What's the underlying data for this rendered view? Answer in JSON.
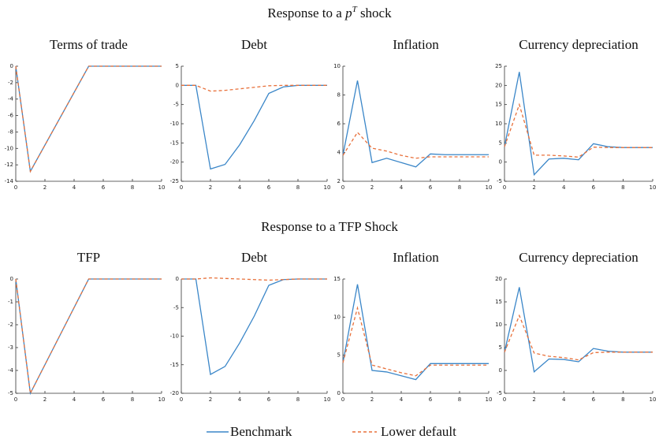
{
  "sections": [
    {
      "title": {
        "text": "Response to a ",
        "symbol": "p",
        "sup": "T",
        "rest": " shock"
      }
    },
    {
      "title": {
        "text": "Response to a TFP Shock"
      }
    }
  ],
  "chart_data": [
    {
      "type": "line",
      "title": "Terms of trade",
      "x": [
        0,
        1,
        2,
        3,
        4,
        5,
        6,
        7,
        8,
        9,
        10
      ],
      "xlim": [
        0,
        10
      ],
      "xticks": [
        0,
        2,
        4,
        6,
        8,
        10
      ],
      "ylim": [
        -14,
        0
      ],
      "yticks": [
        -14,
        -12,
        -10,
        -8,
        -6,
        -4,
        -2,
        0
      ],
      "series": [
        {
          "name": "Benchmark",
          "color": "#3a86c8",
          "style": "solid",
          "values": [
            0,
            -12.8,
            -9.6,
            -6.4,
            -3.2,
            0,
            0,
            0,
            0,
            0,
            0
          ]
        },
        {
          "name": "Lower default",
          "color": "#e8703a",
          "style": "dashed",
          "values": [
            0,
            -12.8,
            -9.6,
            -6.4,
            -3.2,
            0,
            0,
            0,
            0,
            0,
            0
          ]
        }
      ]
    },
    {
      "type": "line",
      "title": "Debt",
      "x": [
        0,
        1,
        2,
        3,
        4,
        5,
        6,
        7,
        8,
        9,
        10
      ],
      "xlim": [
        0,
        10
      ],
      "xticks": [
        0,
        2,
        4,
        6,
        8,
        10
      ],
      "ylim": [
        -25,
        5
      ],
      "yticks": [
        -25,
        -20,
        -15,
        -10,
        -5,
        0,
        5
      ],
      "series": [
        {
          "name": "Benchmark",
          "color": "#3a86c8",
          "style": "solid",
          "values": [
            0,
            0,
            -21.8,
            -20.6,
            -15.5,
            -9.2,
            -2.1,
            -0.4,
            0,
            0,
            0
          ]
        },
        {
          "name": "Lower default",
          "color": "#e8703a",
          "style": "dashed",
          "values": [
            0,
            0,
            -1.5,
            -1.3,
            -0.9,
            -0.5,
            -0.1,
            0,
            0,
            0,
            0
          ]
        }
      ]
    },
    {
      "type": "line",
      "title": "Inflation",
      "x": [
        0,
        1,
        2,
        3,
        4,
        5,
        6,
        7,
        8,
        9,
        10
      ],
      "xlim": [
        0,
        10
      ],
      "xticks": [
        0,
        2,
        4,
        6,
        8,
        10
      ],
      "ylim": [
        2,
        10
      ],
      "yticks": [
        2,
        4,
        6,
        8,
        10
      ],
      "series": [
        {
          "name": "Benchmark",
          "color": "#3a86c8",
          "style": "solid",
          "values": [
            3.8,
            9.0,
            3.3,
            3.6,
            3.3,
            3.0,
            3.9,
            3.85,
            3.85,
            3.85,
            3.85
          ]
        },
        {
          "name": "Lower default",
          "color": "#e8703a",
          "style": "dashed",
          "values": [
            3.8,
            5.4,
            4.3,
            4.1,
            3.8,
            3.6,
            3.7,
            3.7,
            3.7,
            3.7,
            3.7
          ]
        }
      ]
    },
    {
      "type": "line",
      "title": "Currency depreciation",
      "x": [
        0,
        1,
        2,
        3,
        4,
        5,
        6,
        7,
        8,
        9,
        10
      ],
      "xlim": [
        0,
        10
      ],
      "xticks": [
        0,
        2,
        4,
        6,
        8,
        10
      ],
      "ylim": [
        -5,
        25
      ],
      "yticks": [
        -5,
        0,
        5,
        10,
        15,
        20,
        25
      ],
      "series": [
        {
          "name": "Benchmark",
          "color": "#3a86c8",
          "style": "solid",
          "values": [
            4,
            23.5,
            -3.3,
            0.8,
            1,
            0.6,
            4.8,
            4,
            3.8,
            3.8,
            3.8
          ]
        },
        {
          "name": "Lower default",
          "color": "#e8703a",
          "style": "dashed",
          "values": [
            4,
            15,
            1.8,
            1.8,
            1.6,
            1.3,
            3.9,
            3.8,
            3.8,
            3.8,
            3.8
          ]
        }
      ]
    },
    {
      "type": "line",
      "title": "TFP",
      "x": [
        0,
        1,
        2,
        3,
        4,
        5,
        6,
        7,
        8,
        9,
        10
      ],
      "xlim": [
        0,
        10
      ],
      "xticks": [
        0,
        2,
        4,
        6,
        8,
        10
      ],
      "ylim": [
        -5,
        0
      ],
      "yticks": [
        -5,
        -4,
        -3,
        -2,
        -1,
        0
      ],
      "series": [
        {
          "name": "Benchmark",
          "color": "#3a86c8",
          "style": "solid",
          "values": [
            0,
            -5,
            -3.75,
            -2.5,
            -1.25,
            0,
            0,
            0,
            0,
            0,
            0
          ]
        },
        {
          "name": "Lower default",
          "color": "#e8703a",
          "style": "dashed",
          "values": [
            0,
            -5,
            -3.75,
            -2.5,
            -1.25,
            0,
            0,
            0,
            0,
            0,
            0
          ]
        }
      ]
    },
    {
      "type": "line",
      "title": "Debt",
      "x": [
        0,
        1,
        2,
        3,
        4,
        5,
        6,
        7,
        8,
        9,
        10
      ],
      "xlim": [
        0,
        10
      ],
      "xticks": [
        0,
        2,
        4,
        6,
        8,
        10
      ],
      "ylim": [
        -20,
        0
      ],
      "yticks": [
        -20,
        -15,
        -10,
        -5,
        0
      ],
      "series": [
        {
          "name": "Benchmark",
          "color": "#3a86c8",
          "style": "solid",
          "values": [
            0,
            0,
            -16.7,
            -15.3,
            -11.2,
            -6.5,
            -1.1,
            -0.1,
            0,
            0,
            0
          ]
        },
        {
          "name": "Lower default",
          "color": "#e8703a",
          "style": "dashed",
          "values": [
            0,
            0,
            0.2,
            0.1,
            0,
            -0.1,
            -0.2,
            -0.1,
            0,
            0,
            0
          ]
        }
      ]
    },
    {
      "type": "line",
      "title": "Inflation",
      "x": [
        0,
        1,
        2,
        3,
        4,
        5,
        6,
        7,
        8,
        9,
        10
      ],
      "xlim": [
        0,
        10
      ],
      "xticks": [
        0,
        2,
        4,
        6,
        8,
        10
      ],
      "ylim": [
        0,
        15
      ],
      "yticks": [
        0,
        5,
        10,
        15
      ],
      "series": [
        {
          "name": "Benchmark",
          "color": "#3a86c8",
          "style": "solid",
          "values": [
            4,
            14.3,
            3,
            2.8,
            2.3,
            1.8,
            3.9,
            3.9,
            3.9,
            3.9,
            3.9
          ]
        },
        {
          "name": "Lower default",
          "color": "#e8703a",
          "style": "dashed",
          "values": [
            4,
            11.2,
            3.7,
            3.2,
            2.7,
            2.3,
            3.7,
            3.7,
            3.7,
            3.7,
            3.7
          ]
        }
      ]
    },
    {
      "type": "line",
      "title": "Currency depreciation",
      "x": [
        0,
        1,
        2,
        3,
        4,
        5,
        6,
        7,
        8,
        9,
        10
      ],
      "xlim": [
        0,
        10
      ],
      "xticks": [
        0,
        2,
        4,
        6,
        8,
        10
      ],
      "ylim": [
        -5,
        20
      ],
      "yticks": [
        -5,
        0,
        5,
        10,
        15,
        20
      ],
      "series": [
        {
          "name": "Benchmark",
          "color": "#3a86c8",
          "style": "solid",
          "values": [
            4,
            18.2,
            -0.3,
            2.5,
            2.4,
            1.9,
            4.8,
            4.2,
            4,
            4,
            4
          ]
        },
        {
          "name": "Lower default",
          "color": "#e8703a",
          "style": "dashed",
          "values": [
            4,
            12,
            3.8,
            3.1,
            2.8,
            2.3,
            3.9,
            4,
            4,
            4,
            4
          ]
        }
      ]
    }
  ]
}
